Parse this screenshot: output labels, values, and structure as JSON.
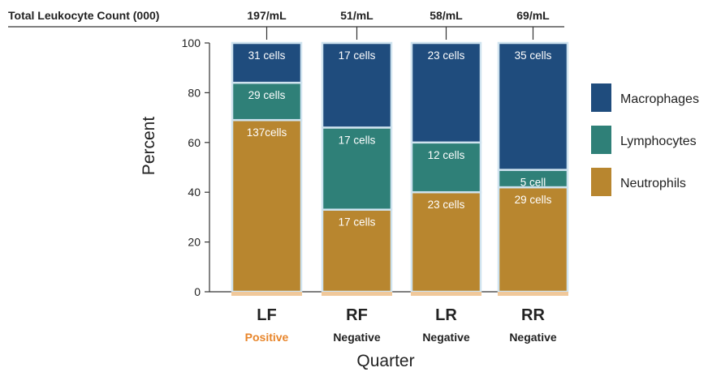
{
  "chart_data": {
    "type": "bar",
    "stacked": true,
    "categories": [
      "LF",
      "RF",
      "LR",
      "RR"
    ],
    "category_status": [
      "Positive",
      "Negative",
      "Negative",
      "Negative"
    ],
    "status_colors": {
      "Positive": "#e8852a",
      "Negative": "#222222"
    },
    "top_header_label": "Total Leukocyte Count (000)",
    "top_header_values": [
      "197/mL",
      "51/mL",
      "58/mL",
      "69/mL"
    ],
    "series": [
      {
        "name": "Neutrophils",
        "color": "#b8862f",
        "values": [
          69,
          33,
          40,
          42
        ],
        "labels": [
          "137cells",
          "17 cells",
          "23 cells",
          "29 cells"
        ]
      },
      {
        "name": "Lymphocytes",
        "color": "#2f8078",
        "values": [
          15,
          33,
          20,
          7
        ],
        "labels": [
          "29 cells",
          "17 cells",
          "12 cells",
          "5 cell"
        ]
      },
      {
        "name": "Macrophages",
        "color": "#1f4c7d",
        "values": [
          16,
          34,
          40,
          51
        ],
        "labels": [
          "31 cells",
          "17 cells",
          "23 cells",
          "35 cells"
        ]
      }
    ],
    "legend_order": [
      "Macrophages",
      "Lymphocytes",
      "Neutrophils"
    ],
    "legend_position": "right",
    "xlabel": "Quarter",
    "ylabel": "Percent",
    "ylim": [
      0,
      100
    ],
    "yticks": [
      "0",
      "20",
      "40",
      "60",
      "80",
      "100"
    ],
    "grid": false
  }
}
